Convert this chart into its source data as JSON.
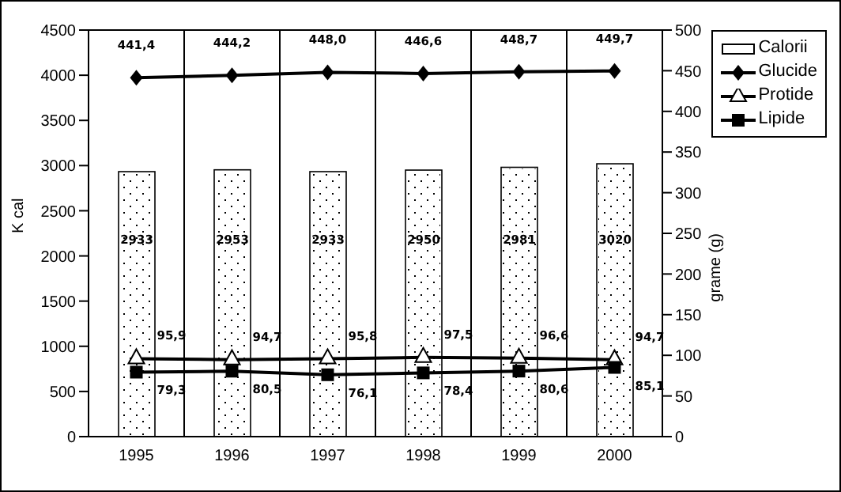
{
  "chart_data": {
    "type": "bar",
    "categories": [
      "1995",
      "1996",
      "1997",
      "1998",
      "1999",
      "2000"
    ],
    "ylabel": "K cal",
    "y2label": "grame (g)",
    "ylim": [
      0,
      4500
    ],
    "yticks": [
      0,
      500,
      1000,
      1500,
      2000,
      2500,
      3000,
      3500,
      4000,
      4500
    ],
    "y2lim": [
      0,
      500
    ],
    "y2ticks": [
      0,
      50,
      100,
      150,
      200,
      250,
      300,
      350,
      400,
      450,
      500
    ],
    "grid": true,
    "legend": "right",
    "series": [
      {
        "name": "Calorii",
        "color": "#ffffff",
        "values": [
          2933,
          2953,
          2933,
          2950,
          2981,
          3020
        ],
        "value_labels": [
          "2933",
          "2953",
          "2933",
          "2950",
          "2981",
          "3020"
        ]
      },
      {
        "name": "Glucide",
        "type": "line",
        "axis": "y2",
        "color": "#000000",
        "marker": "diamond",
        "values": [
          441.4,
          444.2,
          448.0,
          446.6,
          448.7,
          449.7
        ],
        "value_labels": [
          "441,4",
          "444,2",
          "448,0",
          "446,6",
          "448,7",
          "449,7"
        ]
      },
      {
        "name": "Protide",
        "type": "line",
        "axis": "y2",
        "color": "#000000",
        "marker": "triangle",
        "values": [
          95.9,
          94.7,
          95.8,
          97.5,
          96.6,
          94.7
        ],
        "value_labels": [
          "95,9",
          "94,7",
          "95,8",
          "97,5",
          "96,6",
          "94,7"
        ]
      },
      {
        "name": "Lipide",
        "type": "line",
        "axis": "y2",
        "color": "#000000",
        "marker": "square",
        "values": [
          79.3,
          80.5,
          76.1,
          78.4,
          80.6,
          85.1
        ],
        "value_labels": [
          "79,3",
          "80,5",
          "76,1",
          "78,4",
          "80,6",
          "85,1"
        ]
      }
    ]
  }
}
